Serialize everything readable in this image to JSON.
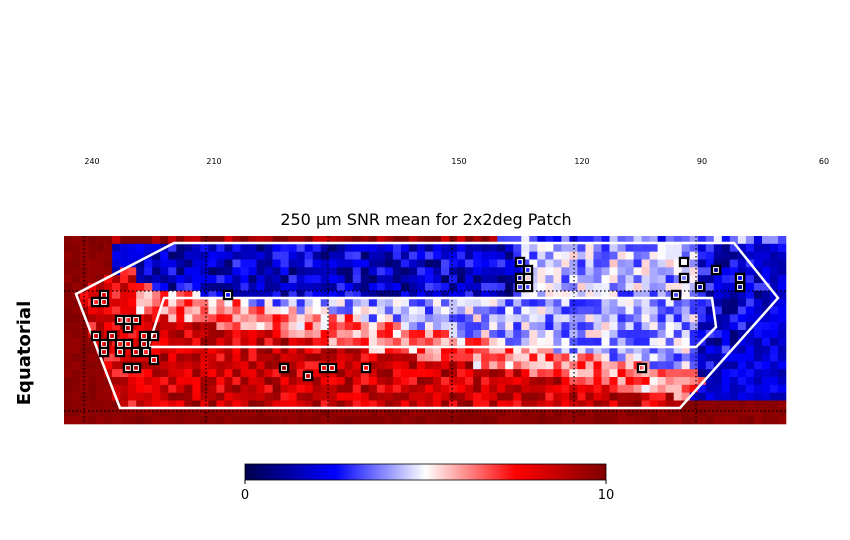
{
  "chart_data": {
    "type": "heatmap",
    "title": "250 μm SNR mean for 2x2deg Patch",
    "ylabel": "Equatorial",
    "x_top_ticks": [
      "240",
      "210",
      "150",
      "120",
      "90",
      "60"
    ],
    "colorbar": {
      "min": 0,
      "max": 10,
      "tick_labels": [
        "0",
        "10"
      ],
      "colormap": [
        "#00004c",
        "#0000ff",
        "#ffffff",
        "#ff0000",
        "#7f0000"
      ]
    },
    "grid": true,
    "markers": "open black squares on selected patches",
    "footprint_outlines": 2
  }
}
